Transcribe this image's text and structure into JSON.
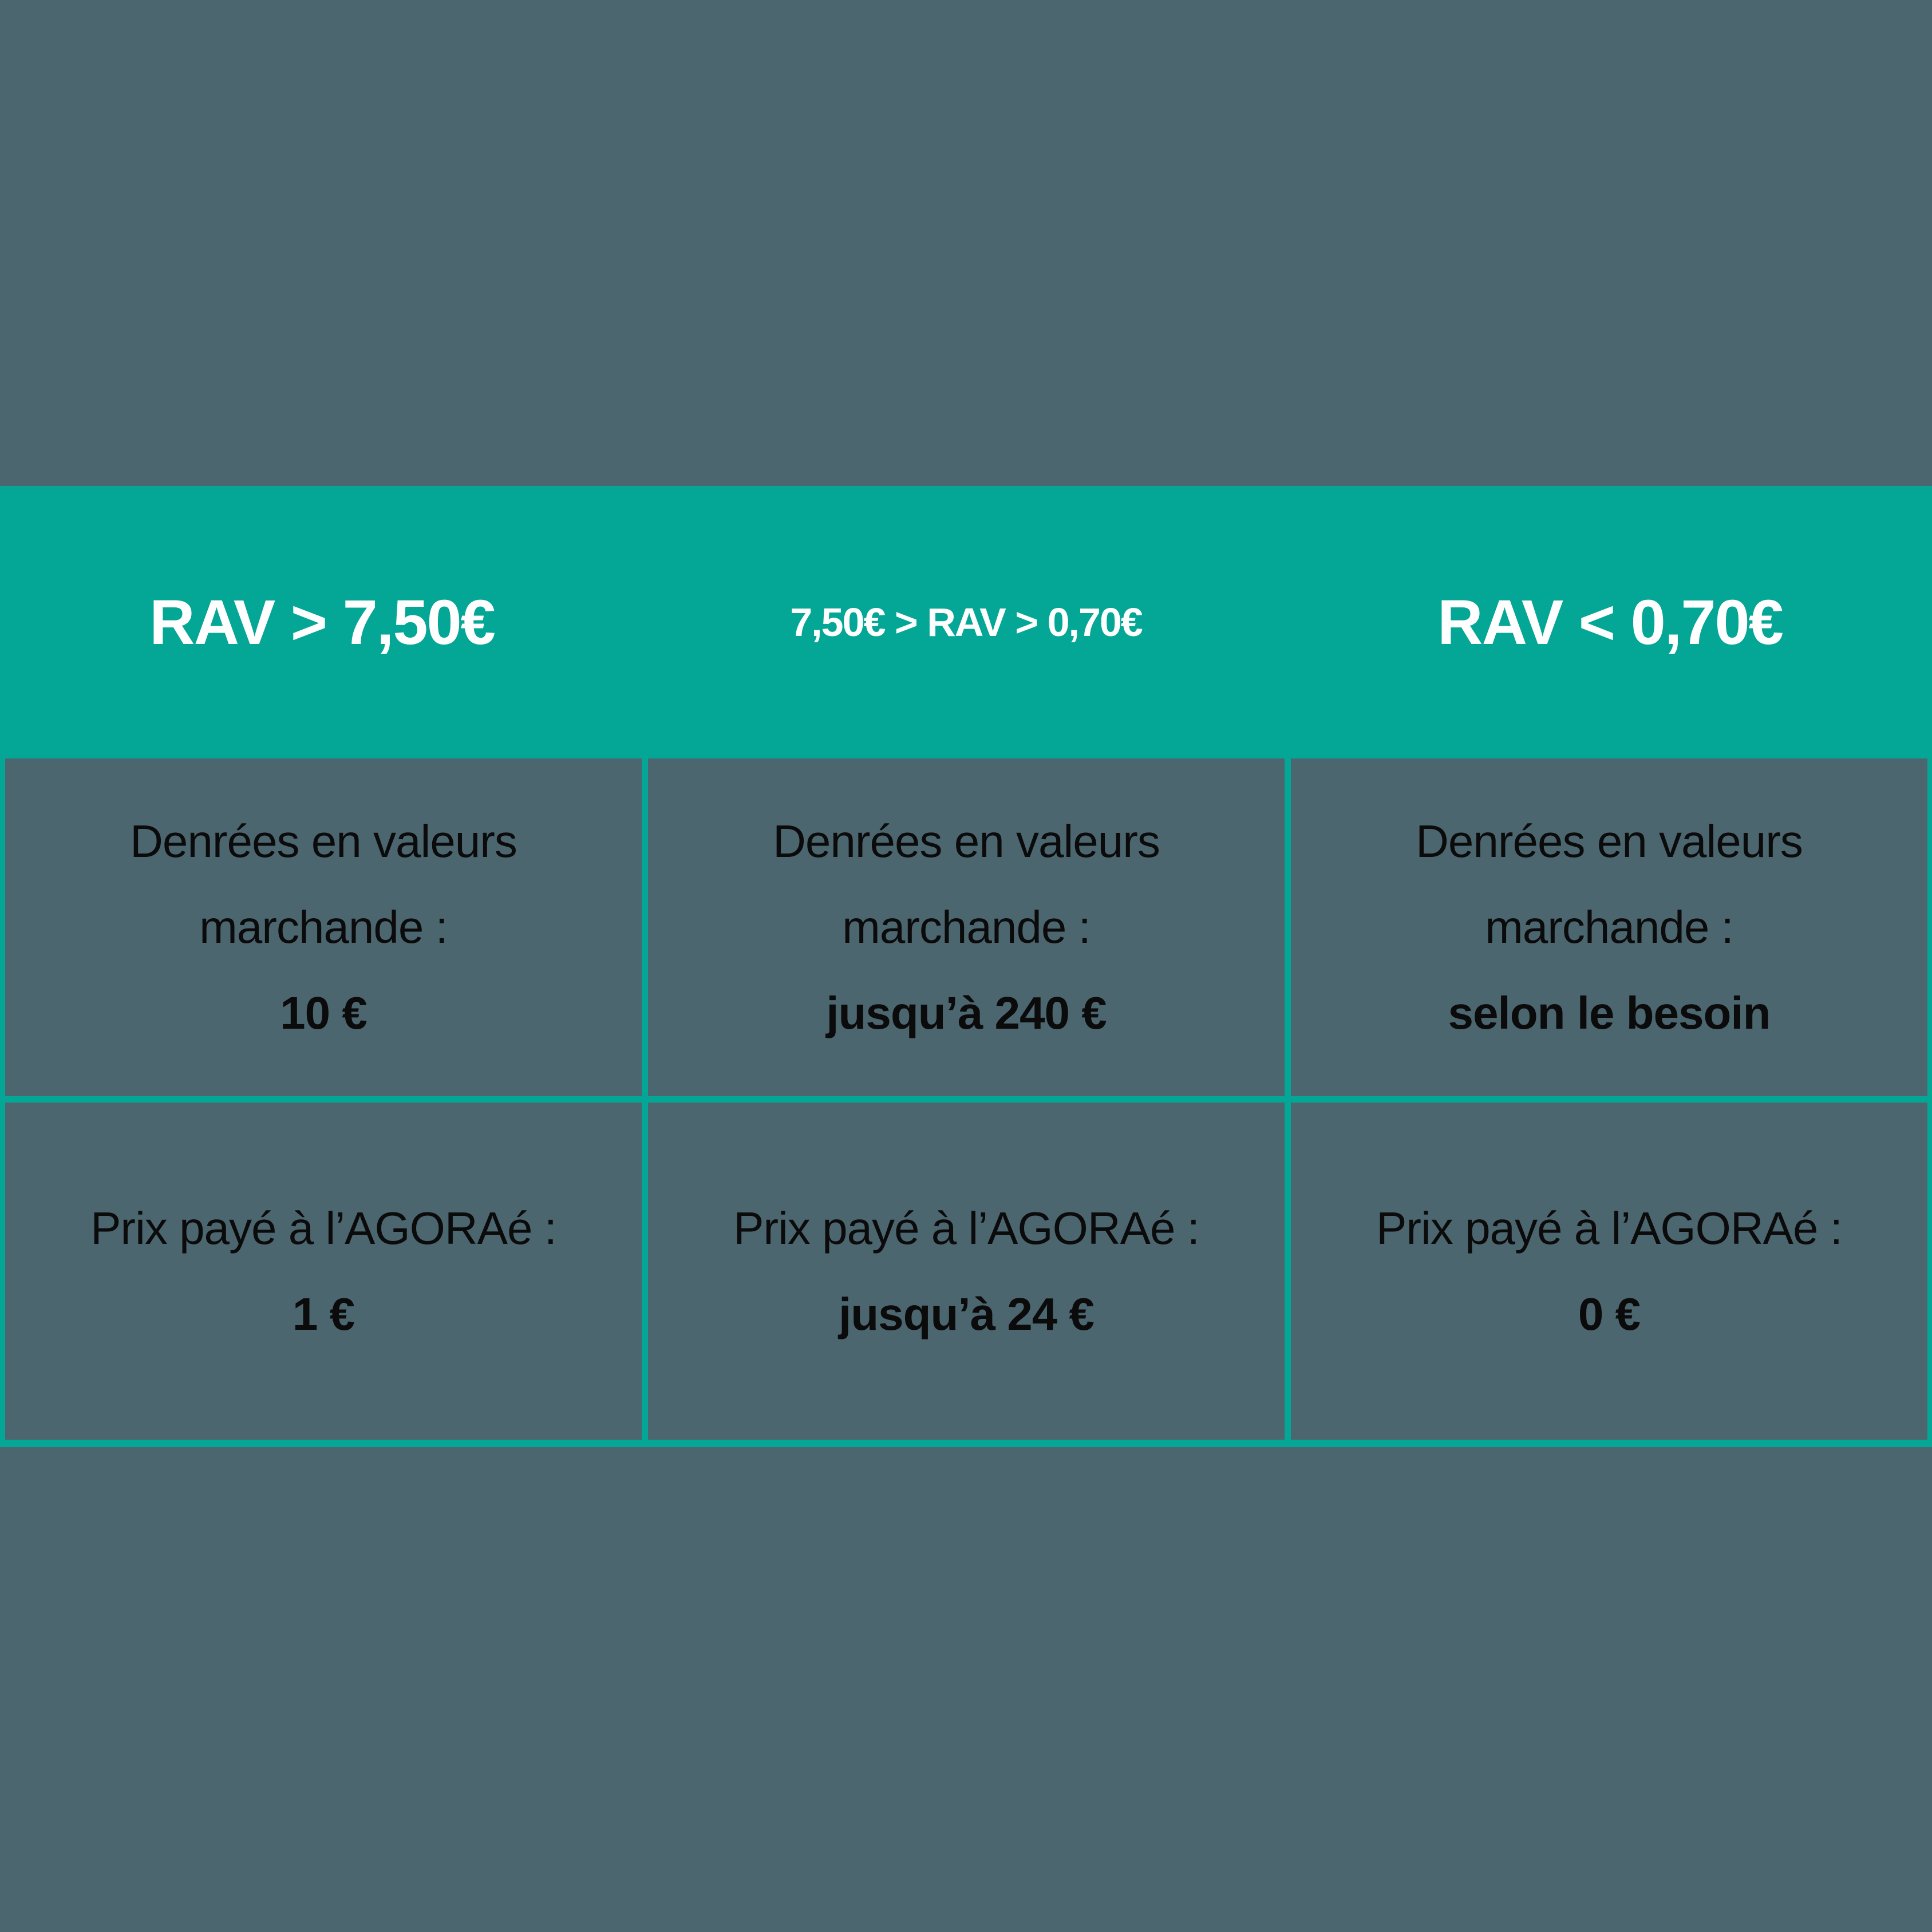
{
  "colors": {
    "accent": "#04a795",
    "bg": "#4c6670",
    "cell-text": "#0b0b0b",
    "header-text": "#ffffff"
  },
  "table": {
    "headers": [
      "RAV  > 7,50€",
      "7,50€ > RAV > 0,70€",
      "RAV < 0,70€"
    ],
    "rows": [
      {
        "cells": [
          {
            "lines": [
              "Denrées en valeurs",
              "marchande :"
            ],
            "value": "10 €"
          },
          {
            "lines": [
              "Denrées en valeurs",
              "marchande :"
            ],
            "value": "jusqu’à 240 €"
          },
          {
            "lines": [
              "Denrées en valeurs",
              "marchande :"
            ],
            "value": "selon le besoin"
          }
        ]
      },
      {
        "cells": [
          {
            "lines": [
              "Prix payé à l’AGORAé :"
            ],
            "value": "1 €"
          },
          {
            "lines": [
              "Prix payé à l’AGORAé :"
            ],
            "value": "jusqu’à 24 €"
          },
          {
            "lines": [
              "Prix payé à l’AGORAé :"
            ],
            "value": "0 €"
          }
        ]
      }
    ]
  },
  "chart_data": {
    "type": "table",
    "title": "",
    "columns": [
      "RAV > 7,50€",
      "7,50€ > RAV > 0,70€",
      "RAV < 0,70€"
    ],
    "rows": [
      {
        "label": "Denrées en valeurs marchande",
        "values": [
          "10 €",
          "jusqu’à 240 €",
          "selon le besoin"
        ]
      },
      {
        "label": "Prix payé à l’AGORAé",
        "values": [
          "1 €",
          "jusqu’à 24 €",
          "0 €"
        ]
      }
    ],
    "layout": {
      "header_fill": "#04a795",
      "cell_fill": "#4c6670",
      "grid": true,
      "grid_color": "#04a795"
    }
  }
}
